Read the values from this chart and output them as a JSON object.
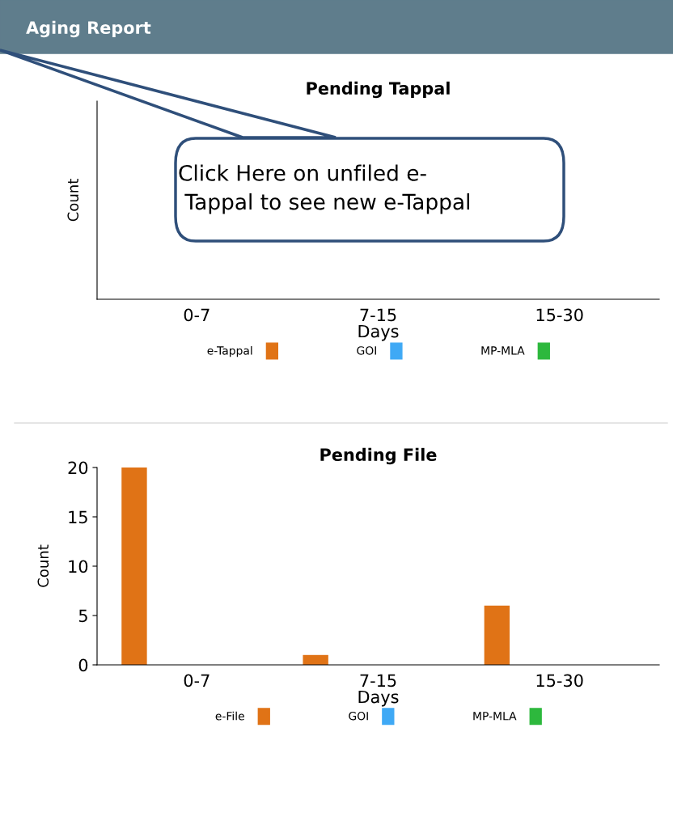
{
  "chart_data": [
    {
      "type": "other",
      "title": "Pending Tappal",
      "xlabel": "Days",
      "ylabel": "Count",
      "categories": [
        "0-7",
        "7-15",
        "15-30"
      ],
      "series": [
        {
          "name": "e-Tappal",
          "color": "#e07316",
          "values": [
            null,
            null,
            null
          ]
        },
        {
          "name": "GOI",
          "color": "#3fa9f5",
          "values": [
            null,
            null,
            null
          ]
        },
        {
          "name": "MP-MLA",
          "color": "#2db83d",
          "values": [
            null,
            null,
            null
          ]
        }
      ],
      "legend": "bottom",
      "annotations": [
        "Aging Report",
        "Click Here on unfiled e-\n Tappal to see new e-Tappal"
      ]
    },
    {
      "type": "bar",
      "title": "Pending File",
      "xlabel": "Days",
      "ylabel": "Count",
      "categories": [
        "0-7",
        "7-15",
        "15-30"
      ],
      "series": [
        {
          "name": "e-File",
          "color": "#e07316",
          "values": [
            20,
            1,
            6
          ]
        },
        {
          "name": "GOI",
          "color": "#3fa9f5",
          "values": [
            0,
            0,
            0
          ]
        },
        {
          "name": "MP-MLA",
          "color": "#2db83d",
          "values": [
            0,
            0,
            0
          ]
        }
      ],
      "ylim": [
        0,
        20
      ],
      "yticks": [
        0,
        5,
        10,
        15,
        20
      ],
      "legend": "bottom",
      "grid": false
    }
  ]
}
